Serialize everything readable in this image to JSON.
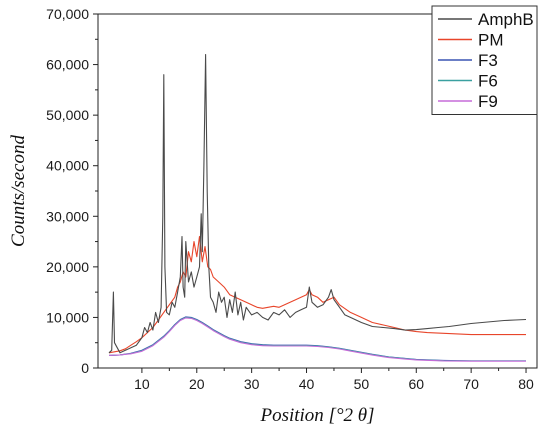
{
  "chart_data": {
    "type": "line",
    "xlabel": "Position [°2 θ]",
    "ylabel": "Counts/second",
    "xlim": [
      2,
      82
    ],
    "ylim": [
      0,
      70000
    ],
    "x_ticks": [
      10,
      20,
      30,
      40,
      50,
      60,
      70,
      80
    ],
    "y_ticks": [
      0,
      10000,
      20000,
      30000,
      40000,
      50000,
      60000,
      70000
    ],
    "x_tick_labels": [
      "10",
      "20",
      "30",
      "40",
      "50",
      "60",
      "70",
      "80"
    ],
    "y_tick_labels": [
      "0",
      "10,000",
      "20,000",
      "30,000",
      "40,000",
      "50,000",
      "60,000",
      "70,000"
    ],
    "grid": false,
    "legend_position": "top-right",
    "series": [
      {
        "name": "AmphB",
        "color": "#4a4a4a",
        "x": [
          4,
          4.5,
          4.8,
          5,
          6,
          7,
          8,
          9,
          10,
          10.5,
          11,
          11.5,
          12,
          12.5,
          13,
          13.5,
          13.8,
          14,
          14.2,
          14.5,
          15,
          15.5,
          16,
          16.5,
          17,
          17.3,
          17.5,
          17.8,
          18,
          18.5,
          19,
          19.5,
          20,
          20.5,
          20.8,
          21,
          21.3,
          21.6,
          21.9,
          22.2,
          22.5,
          23,
          23.5,
          24,
          24.5,
          25,
          25.5,
          26,
          26.5,
          27,
          27.5,
          28,
          28.5,
          29,
          30,
          31,
          32,
          33,
          34,
          35,
          36,
          37,
          38,
          39,
          40,
          40.5,
          41,
          42,
          43,
          44,
          44.5,
          45,
          46,
          47,
          48,
          50,
          52,
          54,
          56,
          58,
          60,
          62,
          64,
          66,
          68,
          70,
          72,
          74,
          76,
          78,
          80
        ],
        "y": [
          3000,
          3500,
          15000,
          5000,
          3000,
          3500,
          4000,
          4500,
          6000,
          8000,
          7000,
          9000,
          7500,
          11000,
          9000,
          12000,
          30000,
          58000,
          20000,
          11000,
          10500,
          13000,
          12000,
          15000,
          18000,
          26000,
          16000,
          14000,
          25000,
          17000,
          19000,
          16000,
          18000,
          20000,
          30500,
          23000,
          40000,
          62000,
          35000,
          20000,
          14000,
          13000,
          11000,
          15000,
          13000,
          14000,
          10000,
          13500,
          11000,
          15000,
          10500,
          13000,
          9500,
          12000,
          10500,
          11000,
          10000,
          9500,
          11000,
          10500,
          11500,
          10000,
          11000,
          11500,
          12000,
          16000,
          13000,
          12000,
          12500,
          14000,
          15500,
          13500,
          12000,
          10500,
          10000,
          9000,
          8200,
          8000,
          7800,
          7500,
          7600,
          7800,
          8000,
          8200,
          8500,
          8800,
          9000,
          9200,
          9400,
          9500,
          9600
        ]
      },
      {
        "name": "PM",
        "color": "#e8452a",
        "x": [
          4,
          5,
          6,
          7,
          8,
          9,
          10,
          11,
          12,
          13,
          14,
          15,
          16,
          16.5,
          17,
          17.5,
          18,
          18.5,
          19,
          19.5,
          20,
          20.5,
          21,
          21.5,
          22,
          22.5,
          23,
          24,
          25,
          26,
          27,
          28,
          29,
          30,
          31,
          32,
          33,
          34,
          35,
          36,
          37,
          38,
          39,
          40,
          40.5,
          41,
          42,
          43,
          44,
          45,
          46,
          48,
          50,
          52,
          54,
          56,
          58,
          60,
          62,
          64,
          66,
          68,
          70,
          72,
          74,
          76,
          78,
          80
        ],
        "y": [
          3000,
          3200,
          3400,
          3800,
          4500,
          5200,
          6000,
          7000,
          8000,
          9500,
          11000,
          12500,
          14000,
          16000,
          17000,
          19000,
          18000,
          23000,
          21000,
          25000,
          22000,
          26000,
          21000,
          24000,
          20000,
          19500,
          18000,
          17000,
          16000,
          14500,
          14000,
          13500,
          13000,
          12500,
          12000,
          11800,
          12000,
          12200,
          12000,
          12500,
          13000,
          13500,
          14000,
          14500,
          15500,
          14500,
          14000,
          13000,
          13500,
          14000,
          12500,
          11000,
          10000,
          9000,
          8500,
          8000,
          7500,
          7200,
          7000,
          6900,
          6800,
          6700,
          6600,
          6600,
          6600,
          6600,
          6600,
          6600
        ]
      },
      {
        "name": "F3",
        "color": "#3a55b4",
        "x": [
          4,
          6,
          8,
          10,
          12,
          14,
          15,
          16,
          17,
          18,
          19,
          20,
          21,
          22,
          23,
          24,
          25,
          26,
          28,
          30,
          32,
          34,
          36,
          38,
          40,
          42,
          44,
          46,
          48,
          50,
          52,
          55,
          58,
          60,
          65,
          70,
          75,
          80
        ],
        "y": [
          2500,
          2600,
          2900,
          3500,
          4600,
          6300,
          7400,
          8600,
          9600,
          10100,
          10000,
          9600,
          9000,
          8300,
          7600,
          7000,
          6400,
          5900,
          5200,
          4800,
          4600,
          4500,
          4500,
          4500,
          4500,
          4400,
          4200,
          3900,
          3500,
          3100,
          2700,
          2200,
          1900,
          1700,
          1500,
          1400,
          1400,
          1400
        ]
      },
      {
        "name": "F6",
        "color": "#3aa0a0",
        "x": [
          4,
          6,
          8,
          10,
          12,
          14,
          15,
          16,
          17,
          18,
          19,
          20,
          21,
          22,
          23,
          24,
          25,
          26,
          28,
          30,
          32,
          34,
          36,
          38,
          40,
          42,
          44,
          46,
          48,
          50,
          52,
          55,
          58,
          60,
          65,
          70,
          75,
          80
        ],
        "y": [
          2500,
          2600,
          2850,
          3400,
          4500,
          6200,
          7300,
          8500,
          9500,
          10000,
          9900,
          9500,
          8900,
          8200,
          7500,
          6900,
          6300,
          5800,
          5100,
          4700,
          4500,
          4450,
          4450,
          4450,
          4450,
          4350,
          4150,
          3850,
          3450,
          3050,
          2650,
          2150,
          1850,
          1650,
          1450,
          1400,
          1400,
          1400
        ]
      },
      {
        "name": "F9",
        "color": "#c56bd8",
        "x": [
          4,
          6,
          8,
          10,
          12,
          14,
          15,
          16,
          17,
          18,
          19,
          20,
          21,
          22,
          23,
          24,
          25,
          26,
          28,
          30,
          32,
          34,
          36,
          38,
          40,
          42,
          44,
          46,
          48,
          50,
          52,
          55,
          58,
          60,
          65,
          70,
          75,
          80
        ],
        "y": [
          2500,
          2600,
          2800,
          3300,
          4400,
          6100,
          7200,
          8400,
          9400,
          9900,
          9800,
          9400,
          8800,
          8100,
          7400,
          6800,
          6200,
          5700,
          5000,
          4600,
          4400,
          4350,
          4350,
          4350,
          4350,
          4250,
          4050,
          3750,
          3350,
          2950,
          2550,
          2050,
          1750,
          1600,
          1400,
          1350,
          1350,
          1350
        ]
      }
    ]
  }
}
